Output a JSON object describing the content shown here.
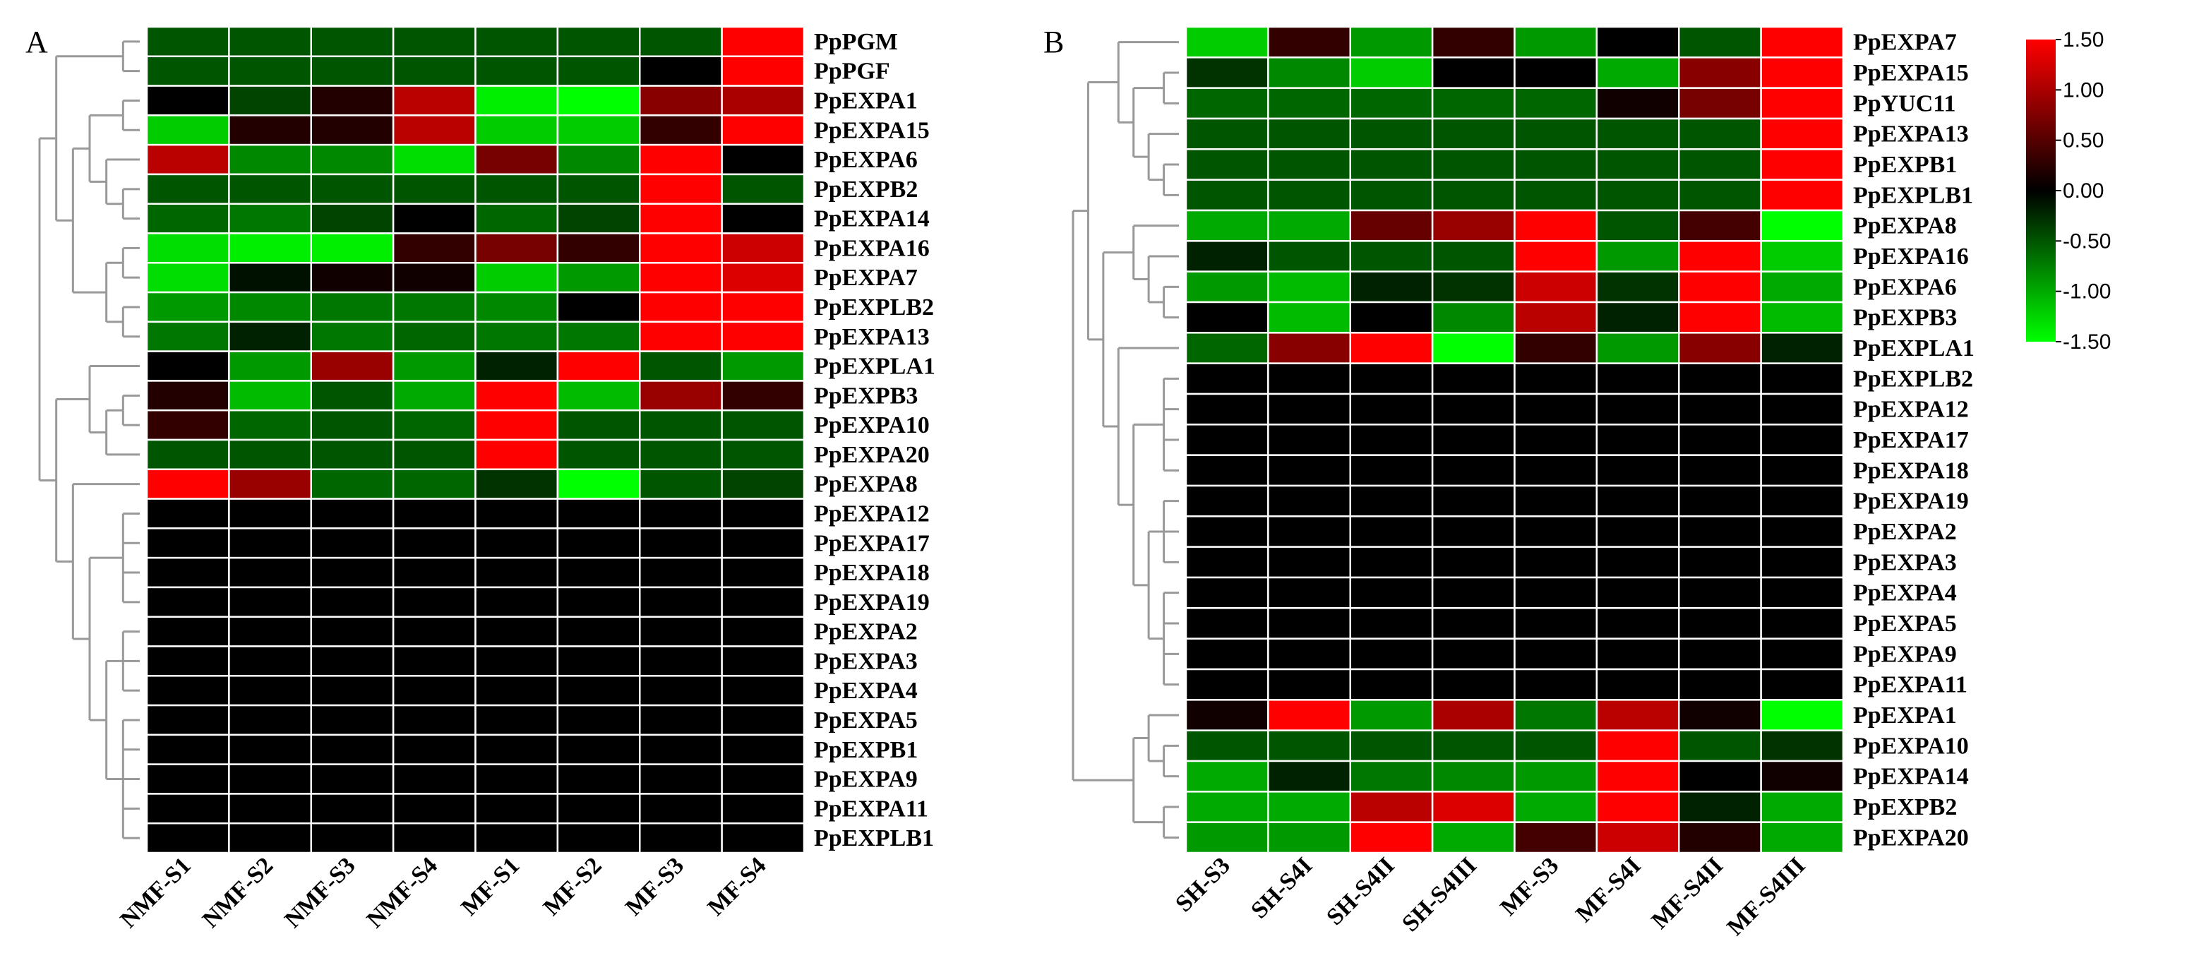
{
  "chart_data": [
    {
      "type": "heatmap",
      "panel": "A",
      "columns": [
        "NMF-S1",
        "NMF-S2",
        "NMF-S3",
        "NMF-S4",
        "MF-S1",
        "MF-S2",
        "MF-S3",
        "MF-S4"
      ],
      "rows": [
        "PpPGM",
        "PpPGF",
        "PpEXPA1",
        "PpEXPA15",
        "PpEXPA6",
        "PpEXPB2",
        "PpEXPA14",
        "PpEXPA16",
        "PpEXPA7",
        "PpEXPLB2",
        "PpEXPA13",
        "PpEXPLA1",
        "PpEXPB3",
        "PpEXPA10",
        "PpEXPA20",
        "PpEXPA8",
        "PpEXPA12",
        "PpEXPA17",
        "PpEXPA18",
        "PpEXPA19",
        "PpEXPA2",
        "PpEXPA3",
        "PpEXPA4",
        "PpEXPA5",
        "PpEXPB1",
        "PpEXPA9",
        "PpEXPA11",
        "PpEXPLB1"
      ],
      "values": [
        [
          -0.5,
          -0.5,
          -0.5,
          -0.5,
          -0.5,
          -0.5,
          -0.5,
          1.5
        ],
        [
          -0.5,
          -0.5,
          -0.5,
          -0.5,
          -0.5,
          -0.5,
          0,
          1.5
        ],
        [
          0,
          -0.4,
          0.2,
          1.1,
          -1.4,
          -1.5,
          0.8,
          1.0
        ],
        [
          -1.2,
          0.2,
          0.2,
          1.1,
          -1.2,
          -1.2,
          0.3,
          1.5
        ],
        [
          1.1,
          -0.8,
          -0.8,
          -1.3,
          0.7,
          -0.8,
          1.5,
          0
        ],
        [
          -0.5,
          -0.5,
          -0.5,
          -0.5,
          -0.5,
          -0.5,
          1.5,
          -0.5
        ],
        [
          -0.6,
          -0.7,
          -0.4,
          0,
          -0.6,
          -0.4,
          1.5,
          0
        ],
        [
          -1.3,
          -1.4,
          -1.4,
          0.3,
          0.7,
          0.3,
          1.5,
          1.2
        ],
        [
          -1.3,
          -0.1,
          0.1,
          0.1,
          -1.2,
          -0.9,
          1.5,
          1.3
        ],
        [
          -0.9,
          -0.8,
          -0.7,
          -0.7,
          -0.8,
          0,
          1.5,
          1.5
        ],
        [
          -0.7,
          -0.2,
          -0.7,
          -0.6,
          -0.7,
          -0.7,
          1.5,
          1.5
        ],
        [
          0,
          -0.9,
          0.9,
          -0.9,
          -0.2,
          1.5,
          -0.5,
          -0.9
        ],
        [
          0.2,
          -1.1,
          -0.5,
          -1.0,
          1.5,
          -1.1,
          0.9,
          0.3
        ],
        [
          0.3,
          -0.6,
          -0.5,
          -0.6,
          1.5,
          -0.5,
          -0.5,
          -0.5
        ],
        [
          -0.5,
          -0.5,
          -0.5,
          -0.5,
          1.5,
          -0.5,
          -0.5,
          -0.5
        ],
        [
          1.5,
          0.9,
          -0.6,
          -0.6,
          -0.3,
          -1.5,
          -0.5,
          -0.4
        ],
        [
          0,
          0,
          0,
          0,
          0,
          0,
          0,
          0
        ],
        [
          0,
          0,
          0,
          0,
          0,
          0,
          0,
          0
        ],
        [
          0,
          0,
          0,
          0,
          0,
          0,
          0,
          0
        ],
        [
          0,
          0,
          0,
          0,
          0,
          0,
          0,
          0
        ],
        [
          0,
          0,
          0,
          0,
          0,
          0,
          0,
          0
        ],
        [
          0,
          0,
          0,
          0,
          0,
          0,
          0,
          0
        ],
        [
          0,
          0,
          0,
          0,
          0,
          0,
          0,
          0
        ],
        [
          0,
          0,
          0,
          0,
          0,
          0,
          0,
          0
        ],
        [
          0,
          0,
          0,
          0,
          0,
          0,
          0,
          0
        ],
        [
          0,
          0,
          0,
          0,
          0,
          0,
          0,
          0
        ],
        [
          0,
          0,
          0,
          0,
          0,
          0,
          0,
          0
        ],
        [
          0,
          0,
          0,
          0,
          0,
          0,
          0,
          0
        ]
      ]
    },
    {
      "type": "heatmap",
      "panel": "B",
      "columns": [
        "SH-S3",
        "SH-S4I",
        "SH-S4II",
        "SH-S4III",
        "MF-S3",
        "MF-S4I",
        "MF-S4II",
        "MF-S4III"
      ],
      "rows": [
        "PpEXPA7",
        "PpEXPA15",
        "PpYUC11",
        "PpEXPA13",
        "PpEXPB1",
        "PpEXPLB1",
        "PpEXPA8",
        "PpEXPA16",
        "PpEXPA6",
        "PpEXPB3",
        "PpEXPLA1",
        "PpEXPLB2",
        "PpEXPA12",
        "PpEXPA17",
        "PpEXPA18",
        "PpEXPA19",
        "PpEXPA2",
        "PpEXPA3",
        "PpEXPA4",
        "PpEXPA5",
        "PpEXPA9",
        "PpEXPA11",
        "PpEXPA1",
        "PpEXPA10",
        "PpEXPA14",
        "PpEXPB2",
        "PpEXPA20"
      ],
      "values": [
        [
          -1.2,
          0.3,
          -0.9,
          0.3,
          -0.9,
          0,
          -0.5,
          1.5
        ],
        [
          -0.3,
          -0.8,
          -1.2,
          0,
          0,
          -1.0,
          0.8,
          1.5
        ],
        [
          -0.6,
          -0.6,
          -0.6,
          -0.6,
          -0.6,
          0.1,
          0.7,
          1.5
        ],
        [
          -0.5,
          -0.5,
          -0.5,
          -0.5,
          -0.5,
          -0.5,
          -0.5,
          1.5
        ],
        [
          -0.5,
          -0.5,
          -0.5,
          -0.5,
          -0.5,
          -0.5,
          -0.5,
          1.5
        ],
        [
          -0.5,
          -0.5,
          -0.5,
          -0.5,
          -0.5,
          -0.5,
          -0.5,
          1.5
        ],
        [
          -1.0,
          -1.0,
          0.6,
          0.9,
          1.5,
          -0.5,
          0.4,
          -1.5
        ],
        [
          -0.2,
          -0.5,
          -0.5,
          -0.5,
          1.5,
          -0.9,
          1.5,
          -1.2
        ],
        [
          -0.9,
          -1.1,
          -0.2,
          -0.3,
          1.2,
          -0.3,
          1.5,
          -1.0
        ],
        [
          0,
          -1.1,
          0,
          -0.8,
          1.1,
          -0.2,
          1.5,
          -1.1
        ],
        [
          -0.6,
          0.8,
          1.5,
          -1.5,
          0.3,
          -0.9,
          0.8,
          -0.2
        ],
        [
          0,
          0,
          0,
          0,
          0,
          0,
          0,
          0
        ],
        [
          0,
          0,
          0,
          0,
          0,
          0,
          0,
          0
        ],
        [
          0,
          0,
          0,
          0,
          0,
          0,
          0,
          0
        ],
        [
          0,
          0,
          0,
          0,
          0,
          0,
          0,
          0
        ],
        [
          0,
          0,
          0,
          0,
          0,
          0,
          0,
          0
        ],
        [
          0,
          0,
          0,
          0,
          0,
          0,
          0,
          0
        ],
        [
          0,
          0,
          0,
          0,
          0,
          0,
          0,
          0
        ],
        [
          0,
          0,
          0,
          0,
          0,
          0,
          0,
          0
        ],
        [
          0,
          0,
          0,
          0,
          0,
          0,
          0,
          0
        ],
        [
          0,
          0,
          0,
          0,
          0,
          0,
          0,
          0
        ],
        [
          0,
          0,
          0,
          0,
          0,
          0,
          0,
          0
        ],
        [
          0.1,
          1.5,
          -0.9,
          1.0,
          -0.7,
          1.1,
          0.1,
          -1.5
        ],
        [
          -0.5,
          -0.5,
          -0.5,
          -0.5,
          -0.5,
          1.5,
          -0.5,
          -0.3
        ],
        [
          -1.0,
          -0.2,
          -0.7,
          -0.8,
          -0.9,
          1.5,
          0,
          0.1
        ],
        [
          -1.0,
          -1.0,
          1.1,
          1.3,
          -1.0,
          1.5,
          -0.2,
          -1.0
        ],
        [
          -0.9,
          -0.9,
          1.5,
          -1.0,
          0.4,
          1.2,
          0.2,
          -1.0
        ]
      ]
    }
  ],
  "colorbar": {
    "min": -1.5,
    "max": 1.5,
    "colors": [
      "#00ff00",
      "#000000",
      "#ff0000"
    ],
    "tick_labels": [
      "1.50",
      "1.00",
      "0.50",
      "0.00",
      "-0.50",
      "-1.00",
      "-1.50"
    ]
  }
}
